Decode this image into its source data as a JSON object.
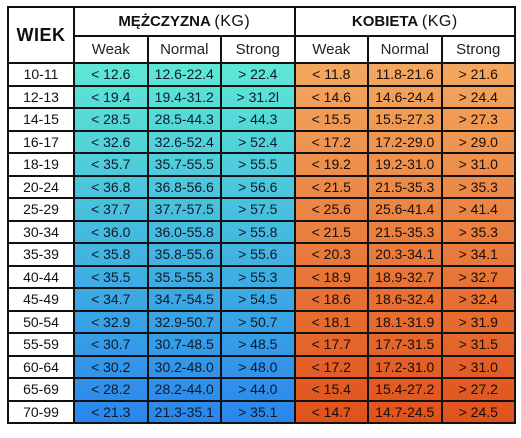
{
  "header": {
    "age_label": "WIEK",
    "male_label": "MĘŻCZYZNA",
    "female_label": "KOBIETA",
    "unit": "(KG)",
    "columns": [
      "Weak",
      "Normal",
      "Strong",
      "Weak",
      "Normal",
      "Strong"
    ]
  },
  "colors": {
    "male_top": "#5ee8d4",
    "male_bottom": "#2a86ec",
    "female_top": "#f2a860",
    "female_bottom": "#e0521c"
  },
  "rows": [
    {
      "age": "10-11",
      "m_weak": "< 12.6",
      "m_normal": "12.6-22.4",
      "m_strong": "> 22.4",
      "f_weak": "< 11.8",
      "f_normal": "11.8-21.6",
      "f_strong": "> 21.6"
    },
    {
      "age": "12-13",
      "m_weak": "< 19.4",
      "m_normal": "19.4-31.2",
      "m_strong": "> 31.2l",
      "f_weak": "< 14.6",
      "f_normal": "14.6-24.4",
      "f_strong": "> 24.4"
    },
    {
      "age": "14-15",
      "m_weak": "< 28.5",
      "m_normal": "28.5-44.3",
      "m_strong": "> 44.3",
      "f_weak": "< 15.5",
      "f_normal": "15.5-27.3",
      "f_strong": "> 27.3"
    },
    {
      "age": "16-17",
      "m_weak": "< 32.6",
      "m_normal": "32.6-52.4",
      "m_strong": "> 52.4",
      "f_weak": "< 17.2",
      "f_normal": "17.2-29.0",
      "f_strong": "> 29.0"
    },
    {
      "age": "18-19",
      "m_weak": "< 35.7",
      "m_normal": "35.7-55.5",
      "m_strong": "> 55.5",
      "f_weak": "< 19.2",
      "f_normal": "19.2-31.0",
      "f_strong": "> 31.0"
    },
    {
      "age": "20-24",
      "m_weak": "< 36.8",
      "m_normal": "36.8-56.6",
      "m_strong": "> 56.6",
      "f_weak": "< 21.5",
      "f_normal": "21.5-35.3",
      "f_strong": "> 35.3"
    },
    {
      "age": "25-29",
      "m_weak": "< 37.7",
      "m_normal": "37.7-57.5",
      "m_strong": "> 57.5",
      "f_weak": "< 25.6",
      "f_normal": "25.6-41.4",
      "f_strong": "> 41.4"
    },
    {
      "age": "30-34",
      "m_weak": "< 36.0",
      "m_normal": "36.0-55.8",
      "m_strong": "> 55.8",
      "f_weak": "< 21.5",
      "f_normal": "21.5-35.3",
      "f_strong": "> 35.3"
    },
    {
      "age": "35-39",
      "m_weak": "< 35.8",
      "m_normal": "35.8-55.6",
      "m_strong": "> 55.6",
      "f_weak": "< 20.3",
      "f_normal": "20.3-34.1",
      "f_strong": "> 34.1"
    },
    {
      "age": "40-44",
      "m_weak": "< 35.5",
      "m_normal": "35.5-55.3",
      "m_strong": "> 55.3",
      "f_weak": "< 18.9",
      "f_normal": "18.9-32.7",
      "f_strong": "> 32.7"
    },
    {
      "age": "45-49",
      "m_weak": "< 34.7",
      "m_normal": "34.7-54.5",
      "m_strong": "> 54.5",
      "f_weak": "< 18.6",
      "f_normal": "18.6-32.4",
      "f_strong": "> 32.4"
    },
    {
      "age": "50-54",
      "m_weak": "< 32.9",
      "m_normal": "32.9-50.7",
      "m_strong": "> 50.7",
      "f_weak": "< 18.1",
      "f_normal": "18.1-31.9",
      "f_strong": "> 31.9"
    },
    {
      "age": "55-59",
      "m_weak": "< 30.7",
      "m_normal": "30.7-48.5",
      "m_strong": "> 48.5",
      "f_weak": "< 17.7",
      "f_normal": "17.7-31.5",
      "f_strong": "> 31.5"
    },
    {
      "age": "60-64",
      "m_weak": "< 30.2",
      "m_normal": "30.2-48.0",
      "m_strong": "> 48.0",
      "f_weak": "< 17.2",
      "f_normal": "17.2-31.0",
      "f_strong": "> 31.0"
    },
    {
      "age": "65-69",
      "m_weak": "< 28.2",
      "m_normal": "28.2-44.0",
      "m_strong": "> 44.0",
      "f_weak": "< 15.4",
      "f_normal": "15.4-27.2",
      "f_strong": "> 27.2"
    },
    {
      "age": "70-99",
      "m_weak": "< 21.3",
      "m_normal": "21.3-35.1",
      "m_strong": "> 35.1",
      "f_weak": "< 14.7",
      "f_normal": "14.7-24.5",
      "f_strong": "> 24.5"
    }
  ]
}
